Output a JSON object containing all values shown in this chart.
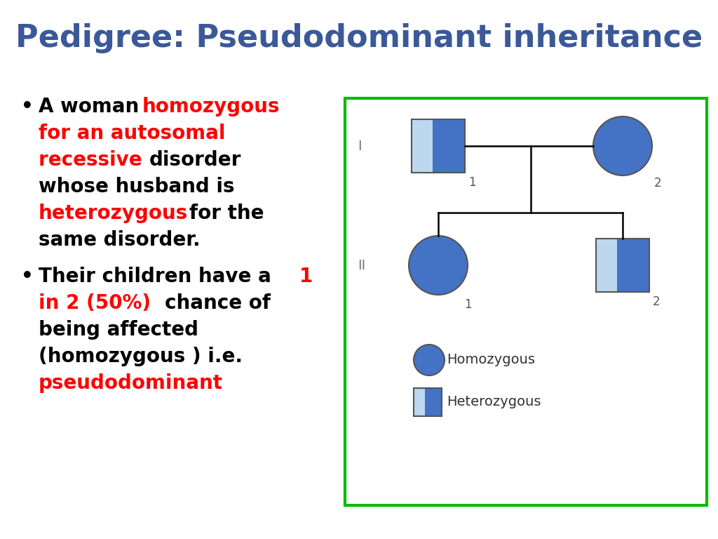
{
  "title": "Pedigree: Pseudodominant inheritance",
  "title_color": "#3B5998",
  "title_fontsize": 32,
  "bg_color": "#ffffff",
  "blue_fill": "#4472C4",
  "light_blue_fill": "#BDD7EE",
  "border_color": "#00BB00",
  "legend_homo_label": "Homozygous",
  "legend_hetero_label": "Heterozygous",
  "text_fontsize": 20,
  "label_fontsize": 11
}
